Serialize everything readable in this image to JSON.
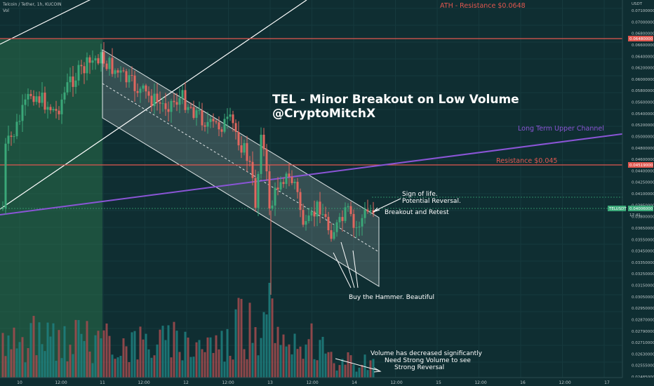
{
  "header": {
    "symbol_line": "Telcoin / Tether, 1h, KUCOIN",
    "vol_label": "Vol"
  },
  "colors": {
    "background": "#0f2e32",
    "up": "#3aa878",
    "down": "#e0675f",
    "vol_up": "#1f8080",
    "vol_down": "#a54b4f",
    "resistance_line": "#e0574f",
    "purple_channel": "#8a55d6",
    "green_zone": "#2e7d4f"
  },
  "chart_data": {
    "type": "candlestick",
    "title": "TEL - Minor Breakout on Low Volume",
    "subtitle": "@CryptoMitchX",
    "currency_label": "USDT",
    "price_label": "TELUSDT",
    "price_badge_value": "0.04006000",
    "price_badge_sub": "17:41",
    "x_tick_labels": [
      "10",
      "12:00",
      "11",
      "12:00",
      "12",
      "12:00",
      "13",
      "12:00",
      "14",
      "12:00",
      "15",
      "12:00",
      "16",
      "12:00",
      "17"
    ],
    "y_tick_labels": [
      "0.07100000",
      "0.07000000",
      "0.06800000",
      "0.06600000",
      "0.06400000",
      "0.06200000",
      "0.06000000",
      "0.05800000",
      "0.05600000",
      "0.05400000",
      "0.05200000",
      "0.05000000",
      "0.04800000",
      "0.04600000",
      "0.04400000",
      "0.04250000",
      "0.04100000",
      "0.03950000",
      "0.03800000",
      "0.03650000",
      "0.03550000",
      "0.03450000",
      "0.03350000",
      "0.03250000",
      "0.03150000",
      "0.03050000",
      "0.02950000",
      "0.02870000",
      "0.02790000",
      "0.02710000",
      "0.02630000",
      "0.02555000",
      "0.02485000"
    ],
    "resistance_levels": [
      {
        "label": "ATH - Resistance $0.0648",
        "badge": "0.06480000"
      },
      {
        "label": "Resistance $0.045",
        "badge": "0.04519000"
      }
    ],
    "trendline_label": "Long Term Upper Channel",
    "annotations": [
      {
        "id": "sign",
        "line1": "Sign of life.",
        "line2": "Potential Reversal."
      },
      {
        "id": "breakout",
        "text": "Breakout and Retest"
      },
      {
        "id": "hammer",
        "text": "Buy the Hammer. Beautiful"
      },
      {
        "id": "volume",
        "line1": "Volume has decreased significantly",
        "line2": "Need Strong Volume to see",
        "line3": "Strong Reversal"
      }
    ]
  }
}
